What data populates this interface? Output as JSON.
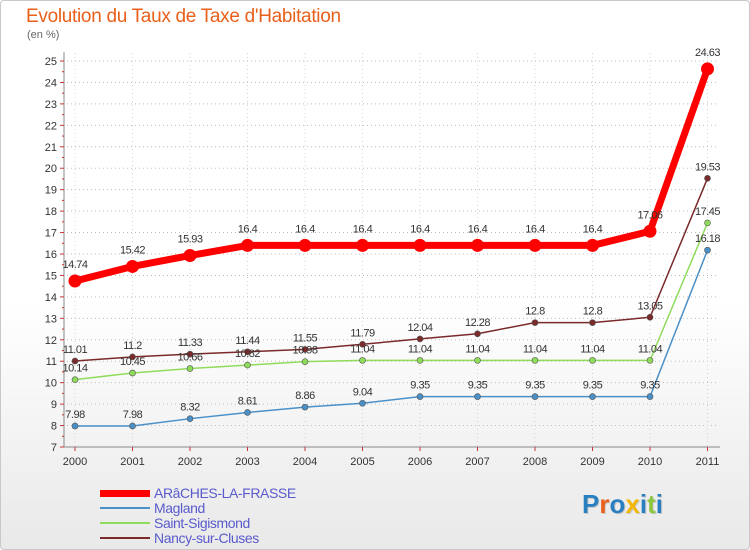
{
  "header": {
    "title": "Evolution du Taux de Taxe d'Habitation",
    "unit": "(en %)"
  },
  "logo": {
    "text": "Proxiti",
    "letters": [
      "P",
      "r",
      "o",
      "x",
      "i",
      "t",
      "i"
    ],
    "letter_colors": [
      "#2a7fc1",
      "#e8601a",
      "#2a7fc1",
      "#f2b705",
      "#2a7fc1",
      "#8cc63f",
      "#2a7fc1"
    ]
  },
  "chart_data": {
    "type": "line",
    "title": "Evolution du Taux de Taxe d'Habitation",
    "ylabel": "(en %)",
    "xlabel": "",
    "ylim": [
      7,
      25
    ],
    "y_ticks": [
      7,
      8,
      9,
      10,
      11,
      12,
      13,
      14,
      15,
      16,
      17,
      18,
      19,
      20,
      21,
      22,
      23,
      24,
      25
    ],
    "categories": [
      "2000",
      "2001",
      "2002",
      "2003",
      "2004",
      "2005",
      "2006",
      "2007",
      "2008",
      "2009",
      "2010",
      "2011"
    ],
    "grid": "horizontal-dotted",
    "legend_position": "bottom-left",
    "series": [
      {
        "name": "ARâCHES-LA-FRASSE",
        "color": "#ff0000",
        "values": [
          14.74,
          15.42,
          15.93,
          16.4,
          16.4,
          16.4,
          16.4,
          16.4,
          16.4,
          16.4,
          17.06,
          24.63
        ],
        "labels": [
          "14.74",
          "15.42",
          "15.93",
          "16.4",
          "16.4",
          "16.4",
          "16.4",
          "16.4",
          "16.4",
          "16.4",
          "17.06",
          "24.63"
        ]
      },
      {
        "name": "Magland",
        "color": "#4a90c8",
        "values": [
          7.98,
          7.98,
          8.32,
          8.61,
          8.86,
          9.04,
          9.35,
          9.35,
          9.35,
          9.35,
          9.35,
          16.18
        ],
        "labels": [
          "7.98",
          "7.98",
          "8.32",
          "8.61",
          "8.86",
          "9.04",
          "9.35",
          "9.35",
          "9.35",
          "9.35",
          "9.35",
          "16.18"
        ]
      },
      {
        "name": "Saint-Sigismond",
        "color": "#8fdc5a",
        "values": [
          10.14,
          10.45,
          10.66,
          10.82,
          10.98,
          11.04,
          11.04,
          11.04,
          11.04,
          11.04,
          11.04,
          17.45
        ],
        "labels": [
          "10.14",
          "10.45",
          "10.66",
          "10.82",
          "10.98",
          "11.04",
          "11.04",
          "11.04",
          "11.04",
          "11.04",
          "11.04",
          "17.45"
        ]
      },
      {
        "name": "Nancy-sur-Cluses",
        "color": "#7a2a2a",
        "values": [
          11.01,
          11.2,
          11.33,
          11.44,
          11.55,
          11.79,
          12.04,
          12.28,
          12.8,
          12.8,
          13.05,
          19.53
        ],
        "labels": [
          "11.01",
          "11.2",
          "11.33",
          "11.44",
          "11.55",
          "11.79",
          "12.04",
          "12.28",
          "12.8",
          "12.8",
          "13.05",
          "19.53"
        ]
      }
    ]
  }
}
